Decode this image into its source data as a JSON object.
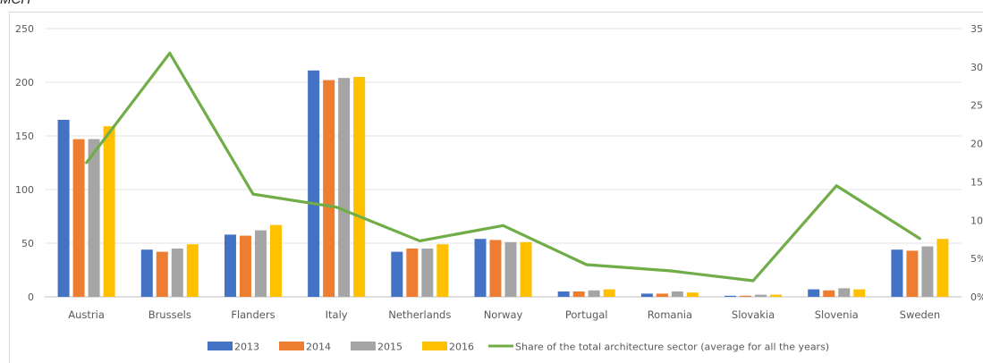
{
  "header_fragment": "MCH",
  "chart_data": {
    "type": "bar",
    "categories": [
      "Austria",
      "Brussels",
      "Flanders",
      "Italy",
      "Netherlands",
      "Norway",
      "Portugal",
      "Romania",
      "Slovakia",
      "Slovenia",
      "Sweden"
    ],
    "series": [
      {
        "name": "2013",
        "color": "#4472c4",
        "values": [
          165,
          44,
          58,
          211,
          42,
          54,
          5,
          3,
          1,
          7,
          44
        ]
      },
      {
        "name": "2014",
        "color": "#ed7d31",
        "values": [
          147,
          42,
          57,
          202,
          45,
          53,
          5,
          3,
          1,
          6,
          43
        ]
      },
      {
        "name": "2015",
        "color": "#a5a5a5",
        "values": [
          147,
          45,
          62,
          204,
          45,
          51,
          6,
          5,
          2,
          8,
          47
        ]
      },
      {
        "name": "2016",
        "color": "#ffc000",
        "values": [
          159,
          49,
          67,
          205,
          49,
          51,
          7,
          4,
          2,
          7,
          54
        ]
      }
    ],
    "line_series": {
      "name": "Share of the total architecture sector (average for all the years)",
      "color": "#70ad47",
      "values": [
        17.5,
        31.8,
        13.4,
        11.7,
        7.3,
        9.3,
        4.2,
        3.4,
        2.1,
        14.5,
        7.6
      ]
    },
    "y_left": {
      "ylim": [
        0,
        250
      ],
      "ticks": [
        "0",
        "50",
        "100",
        "150",
        "200",
        "250"
      ]
    },
    "y_right": {
      "ylim": [
        0,
        35
      ],
      "ticks": [
        "0%",
        "5%",
        "10%",
        "15%",
        "20%",
        "25%",
        "30%",
        "35%"
      ]
    },
    "grid": true,
    "legend_position": "bottom"
  }
}
